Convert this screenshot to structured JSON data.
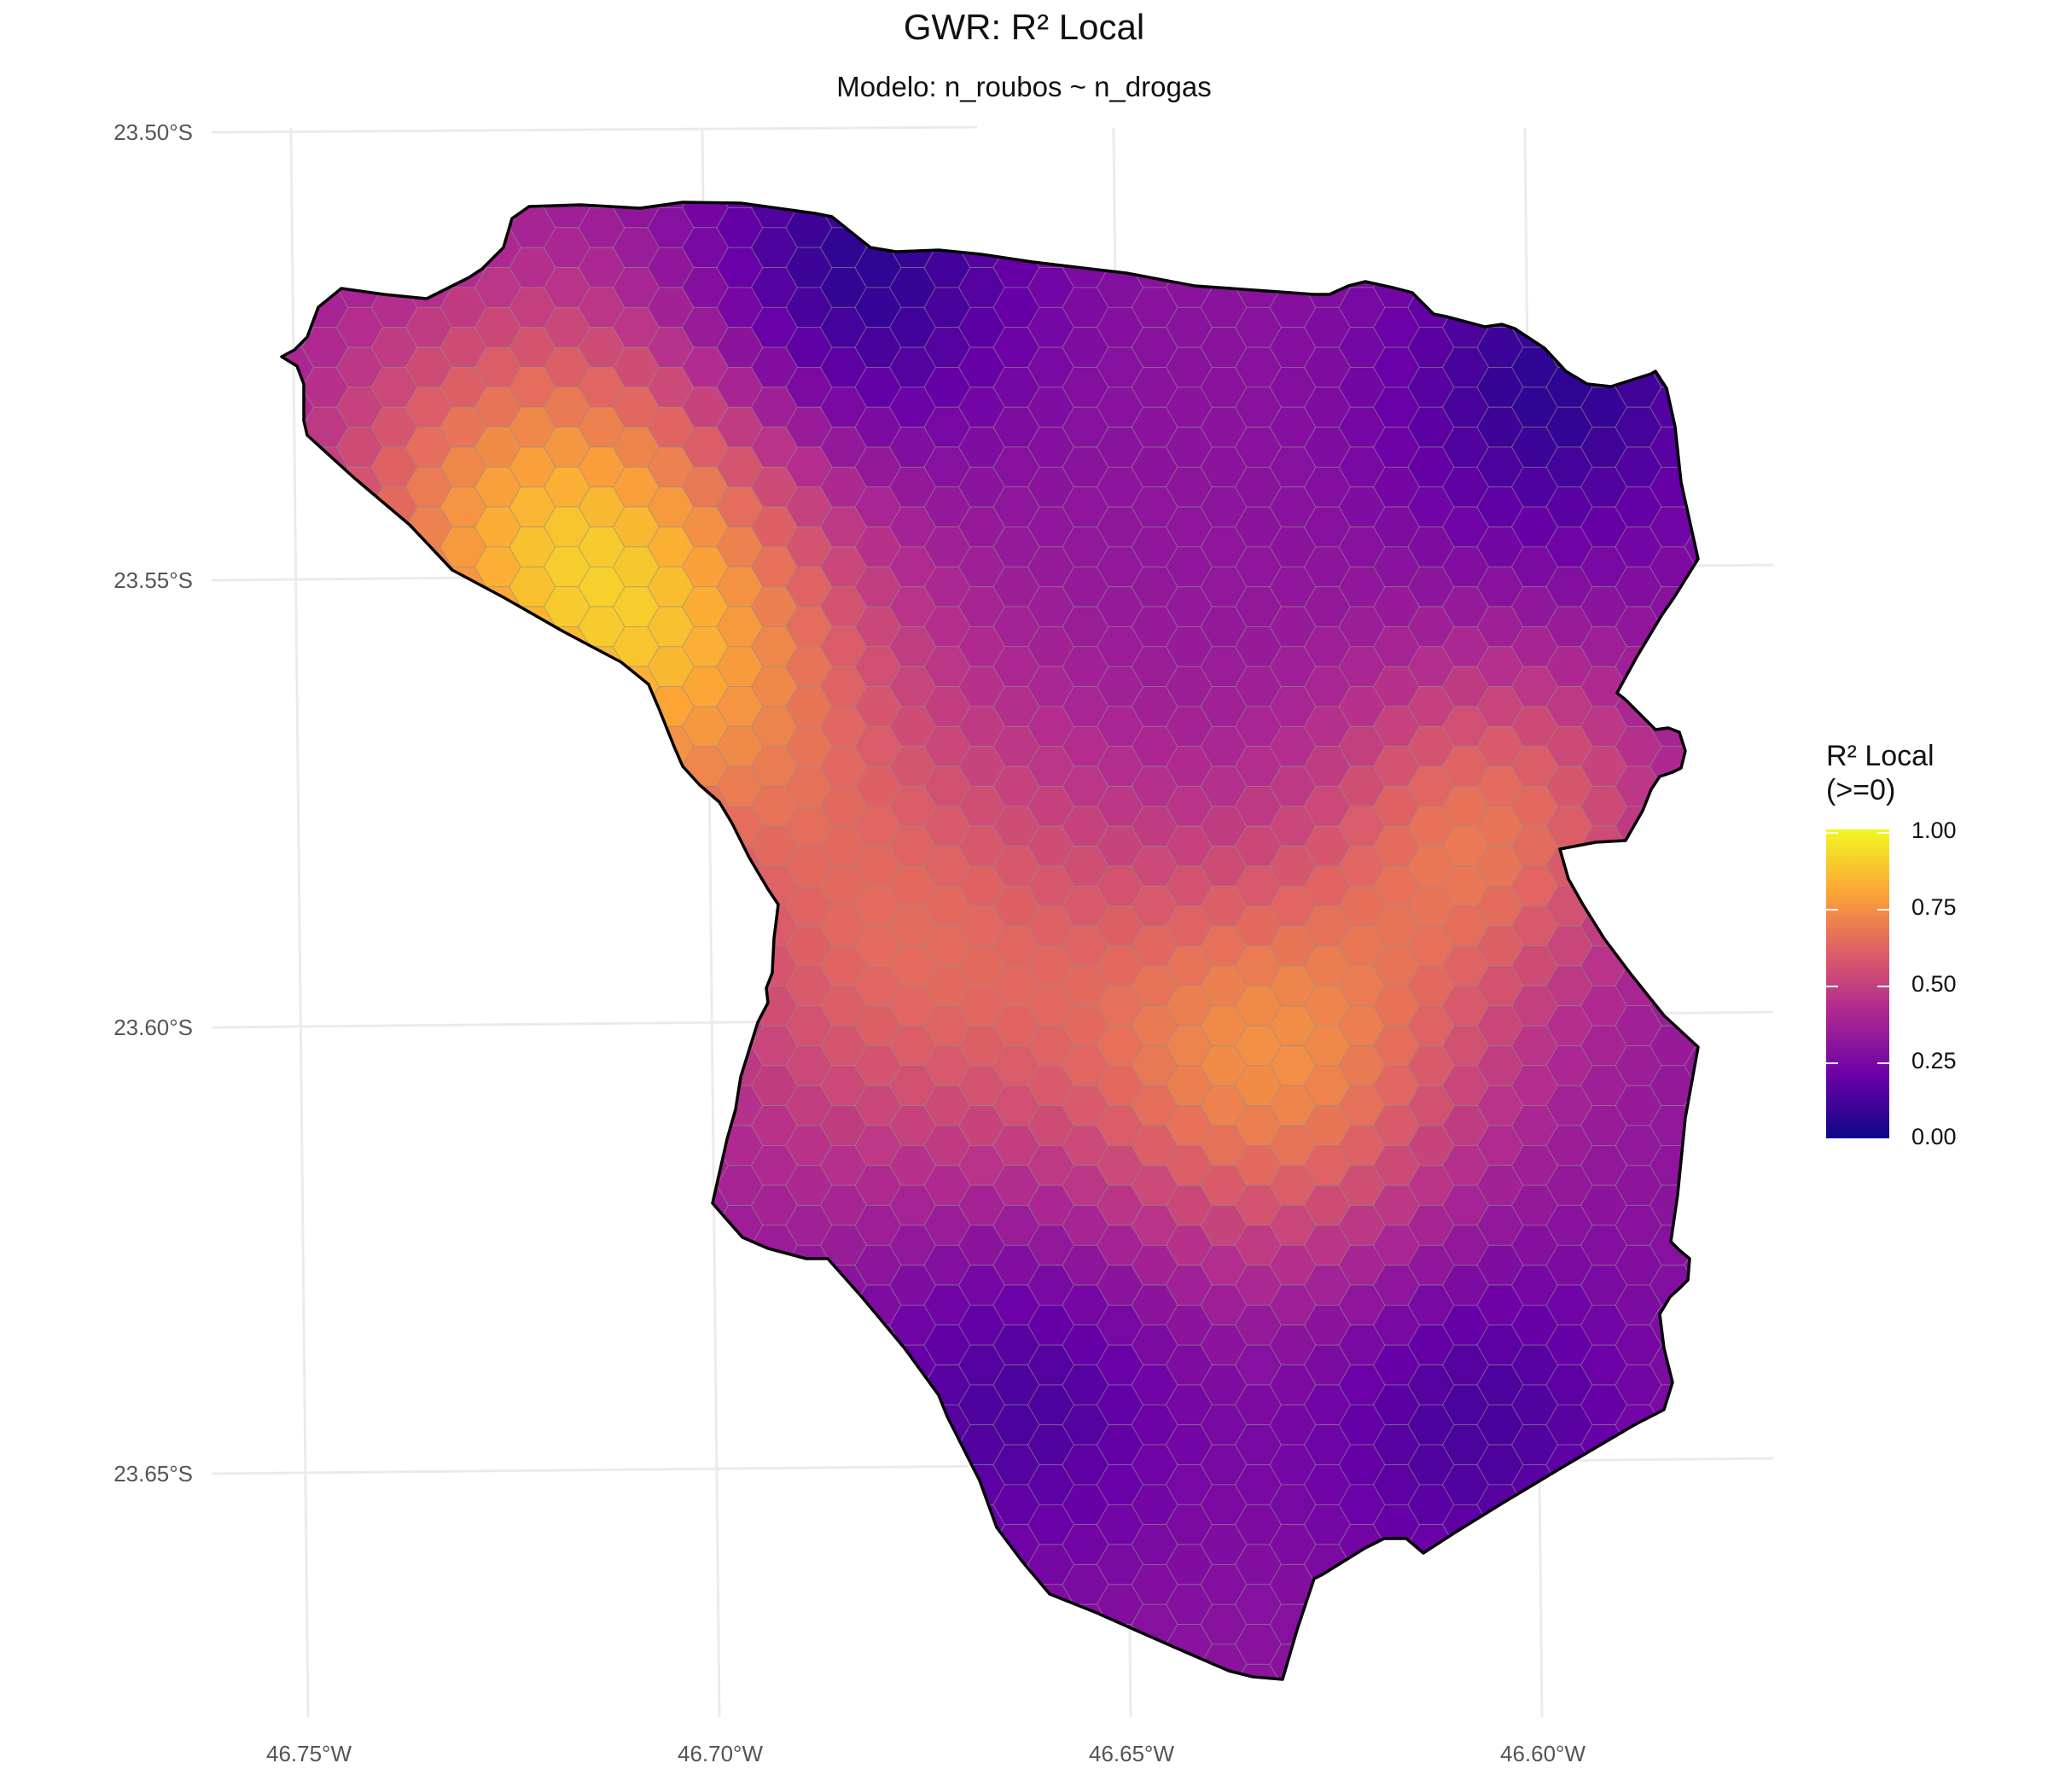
{
  "chart_data": {
    "type": "heatmap",
    "title": "GWR: R² Local",
    "subtitle": "Modelo: n_roubos ~ n_drogas",
    "xlabel": "",
    "ylabel": "",
    "x_ticks": [
      "46.75°W",
      "46.70°W",
      "46.65°W",
      "46.60°W"
    ],
    "y_ticks": [
      "23.50°S",
      "23.55°S",
      "23.60°S",
      "23.65°S"
    ],
    "xlim": [
      -46.762,
      -46.572
    ],
    "ylim": [
      -23.682,
      -23.498
    ],
    "grid": true,
    "cell_shape": "hexagon",
    "colormap": "plasma",
    "value_range": [
      0,
      1
    ],
    "field_hotspots": [
      {
        "lon": -46.718,
        "lat": -23.543,
        "r2": 0.8
      },
      {
        "lon": -46.632,
        "lat": -23.605,
        "r2": 0.7
      },
      {
        "lon": -46.605,
        "lat": -23.579,
        "r2": 0.62
      },
      {
        "lon": -46.676,
        "lat": -23.591,
        "r2": 0.6
      },
      {
        "lon": -46.7,
        "lat": -23.56,
        "r2": 0.55
      }
    ],
    "field_lows": [
      {
        "lon": -46.68,
        "lat": -23.515,
        "r2": 0.05
      },
      {
        "lon": -46.595,
        "lat": -23.53,
        "r2": 0.07
      },
      {
        "lon": -46.665,
        "lat": -23.64,
        "r2": 0.12
      },
      {
        "lon": -46.61,
        "lat": -23.645,
        "r2": 0.12
      }
    ],
    "field_background_r2": 0.3,
    "legend": {
      "title_line1": "R² Local",
      "title_line2": "(>=0)",
      "position": "right",
      "ticks": [
        "1.00",
        "0.75",
        "0.50",
        "0.25",
        "0.00"
      ],
      "tick_values": [
        1,
        0.75,
        0.5,
        0.25,
        0
      ]
    },
    "colors": {
      "boundary": "#000000",
      "hex_edge": "#8c8c8c",
      "grid": "#ebebeb",
      "plasma": [
        "#0d0887",
        "#6a00a8",
        "#b12a90",
        "#e16462",
        "#fca636",
        "#f0f921"
      ]
    }
  }
}
